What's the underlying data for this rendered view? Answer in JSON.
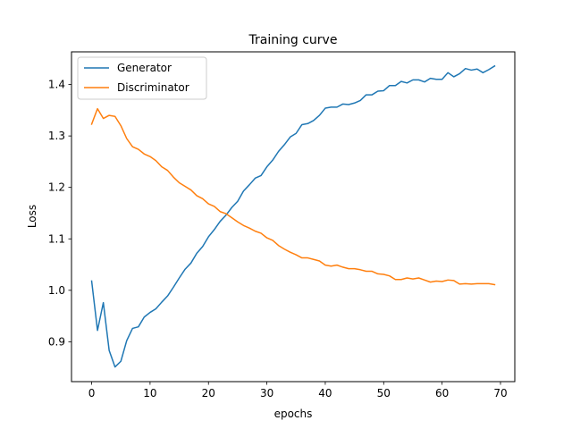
{
  "chart_data": {
    "type": "line",
    "title": "Training curve",
    "xlabel": "epochs",
    "ylabel": "Loss",
    "xlim": [
      -3.45,
      72.45
    ],
    "ylim": [
      0.8225,
      1.4635
    ],
    "xticks": [
      0,
      10,
      20,
      30,
      40,
      50,
      60,
      70
    ],
    "yticks": [
      0.9,
      1.0,
      1.1,
      1.2,
      1.3,
      1.4
    ],
    "ytick_labels": [
      "0.9",
      "1.0",
      "1.1",
      "1.2",
      "1.3",
      "1.4"
    ],
    "legend": "top-left",
    "grid": false,
    "x": [
      0,
      1,
      2,
      3,
      4,
      5,
      6,
      7,
      8,
      9,
      10,
      11,
      12,
      13,
      14,
      15,
      16,
      17,
      18,
      19,
      20,
      21,
      22,
      23,
      24,
      25,
      26,
      27,
      28,
      29,
      30,
      31,
      32,
      33,
      34,
      35,
      36,
      37,
      38,
      39,
      40,
      41,
      42,
      43,
      44,
      45,
      46,
      47,
      48,
      49,
      50,
      51,
      52,
      53,
      54,
      55,
      56,
      57,
      58,
      59,
      60,
      61,
      62,
      63,
      64,
      65,
      66,
      67,
      68,
      69
    ],
    "series": [
      {
        "name": "Generator",
        "color": "#1f77b4",
        "values": [
          1.018,
          0.922,
          0.976,
          0.883,
          0.851,
          0.862,
          0.902,
          0.926,
          0.929,
          0.948,
          0.957,
          0.964,
          0.977,
          0.989,
          1.006,
          1.024,
          1.041,
          1.053,
          1.072,
          1.085,
          1.104,
          1.118,
          1.134,
          1.146,
          1.161,
          1.173,
          1.193,
          1.205,
          1.218,
          1.223,
          1.24,
          1.253,
          1.27,
          1.283,
          1.298,
          1.305,
          1.322,
          1.324,
          1.33,
          1.34,
          1.354,
          1.356,
          1.356,
          1.362,
          1.361,
          1.364,
          1.369,
          1.38,
          1.38,
          1.387,
          1.388,
          1.398,
          1.398,
          1.406,
          1.403,
          1.409,
          1.409,
          1.405,
          1.412,
          1.41,
          1.41,
          1.423,
          1.415,
          1.421,
          1.431,
          1.428,
          1.43,
          1.423,
          1.429,
          1.436
        ]
      },
      {
        "name": "Discriminator",
        "color": "#ff7f0e",
        "values": [
          1.323,
          1.353,
          1.334,
          1.34,
          1.338,
          1.32,
          1.295,
          1.279,
          1.274,
          1.265,
          1.26,
          1.252,
          1.24,
          1.233,
          1.22,
          1.209,
          1.202,
          1.195,
          1.184,
          1.178,
          1.168,
          1.163,
          1.153,
          1.149,
          1.141,
          1.133,
          1.126,
          1.121,
          1.115,
          1.111,
          1.102,
          1.097,
          1.087,
          1.08,
          1.074,
          1.069,
          1.063,
          1.063,
          1.06,
          1.057,
          1.049,
          1.047,
          1.049,
          1.045,
          1.042,
          1.042,
          1.04,
          1.037,
          1.037,
          1.032,
          1.031,
          1.028,
          1.021,
          1.021,
          1.024,
          1.022,
          1.024,
          1.02,
          1.016,
          1.018,
          1.017,
          1.02,
          1.019,
          1.012,
          1.013,
          1.012,
          1.013,
          1.013,
          1.013,
          1.011
        ]
      }
    ]
  }
}
